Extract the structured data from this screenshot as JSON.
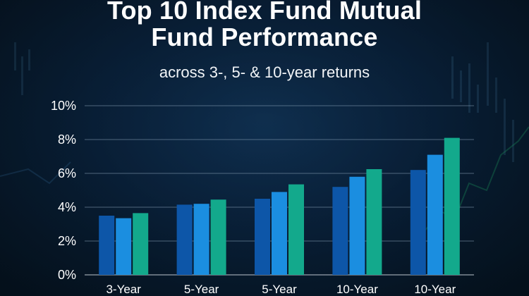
{
  "header": {
    "title_line1": "Top 10 Index Fund Mutual",
    "title_line2": "Fund Performance",
    "subtitle": "across 3-, 5- & 10-year returns"
  },
  "chart_data": {
    "type": "bar",
    "title": "Top 10 Index Fund Mutual Fund Performance",
    "subtitle": "across 3-, 5- & 10-year returns",
    "categories": [
      "3-Year",
      "5-Year",
      "5-Year",
      "10-Year",
      "10-Year"
    ],
    "series": [
      {
        "values": [
          3.5,
          4.15,
          4.5,
          5.2,
          6.2
        ],
        "color": "#0d56a8"
      },
      {
        "values": [
          3.35,
          4.2,
          4.9,
          5.8,
          7.1
        ],
        "color": "#1b8ee0"
      },
      {
        "values": [
          3.65,
          4.45,
          5.35,
          6.25,
          8.1
        ],
        "color": "#13a98c"
      }
    ],
    "y_ticks": [
      "0%",
      "2%",
      "4%",
      "6%",
      "8%",
      "10%"
    ],
    "ylim": [
      0,
      10
    ],
    "grid": true,
    "legend": "none"
  }
}
